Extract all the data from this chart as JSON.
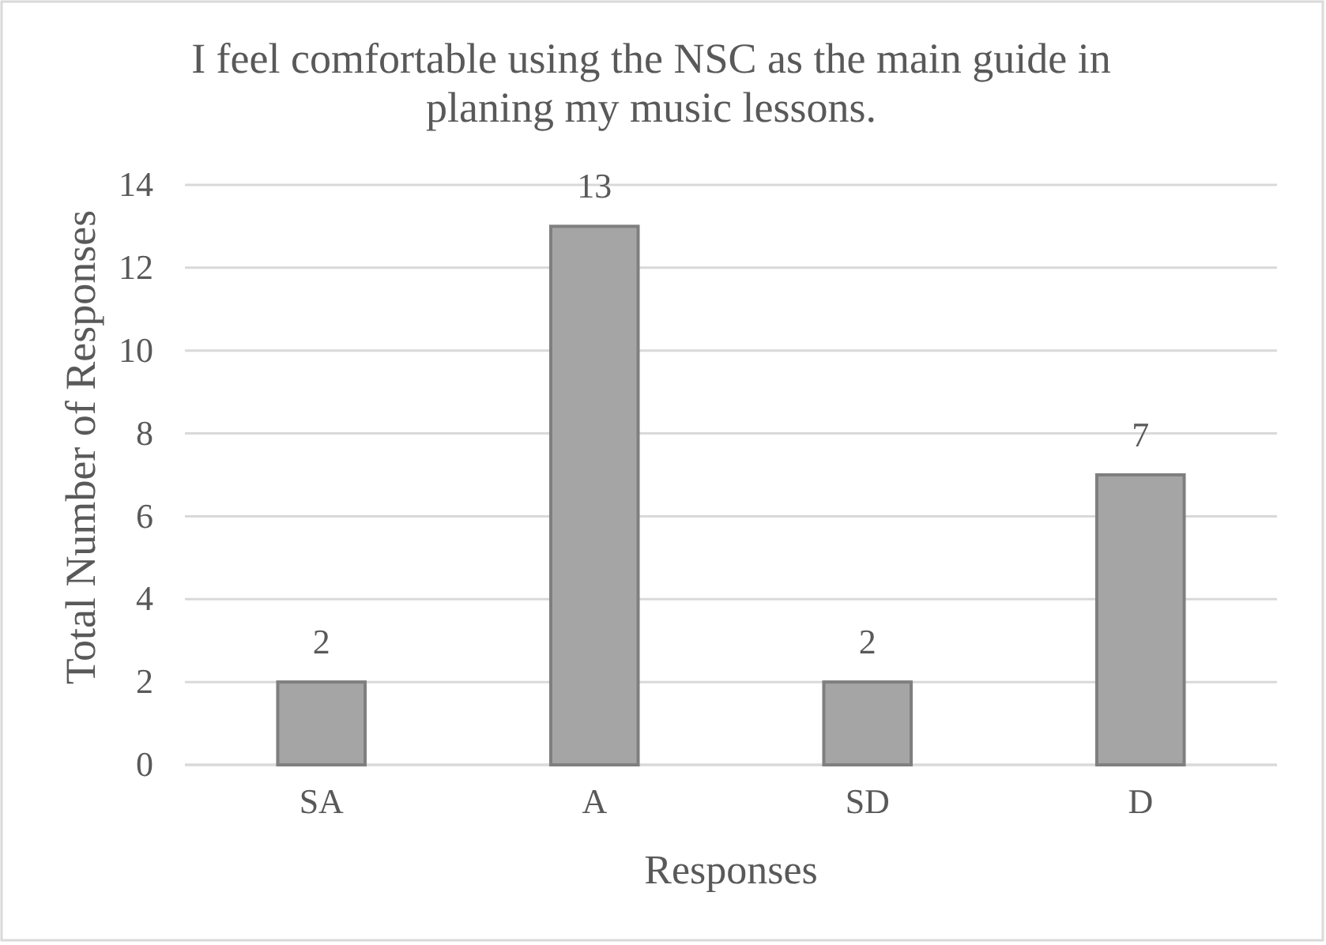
{
  "chart_data": {
    "type": "bar",
    "title": "I feel comfortable using the NSC as the main guide in planing my music lessons.",
    "xlabel": "Responses",
    "ylabel": "Total Number of Responses",
    "categories": [
      "SA",
      "A",
      "SD",
      "D"
    ],
    "values": [
      2,
      13,
      2,
      7
    ],
    "color": "#a5a5a5",
    "ylim": [
      0,
      14
    ],
    "yticks": [
      0,
      2,
      4,
      6,
      8,
      10,
      12,
      14
    ],
    "grid": "y",
    "data_labels": true
  }
}
